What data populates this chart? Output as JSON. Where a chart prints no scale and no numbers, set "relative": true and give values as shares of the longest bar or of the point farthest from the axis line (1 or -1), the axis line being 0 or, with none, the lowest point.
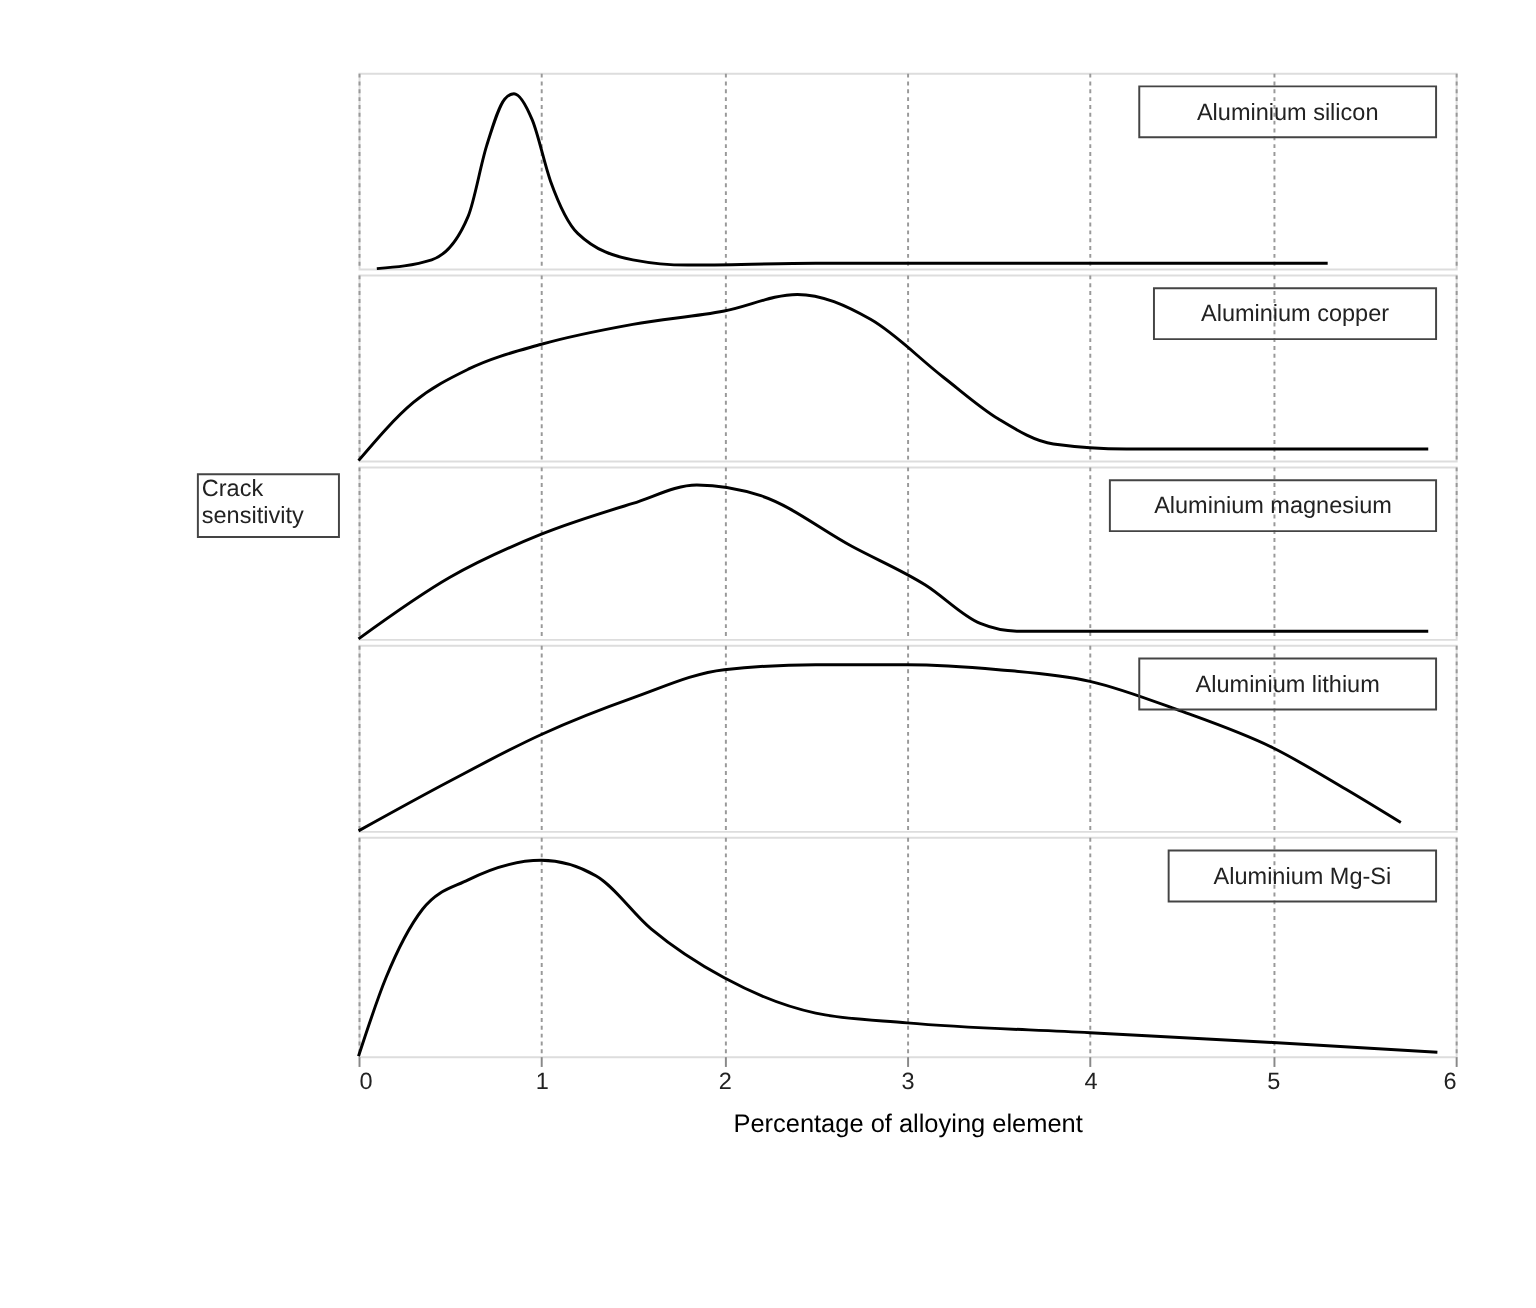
{
  "chart_data": [
    {
      "type": "line",
      "relative": true,
      "xlim": [
        0,
        6
      ],
      "xticks": [
        0,
        1,
        2,
        3,
        4,
        5,
        6
      ],
      "grid": "x",
      "tick_labels": false,
      "series": [
        {
          "name": "Aluminium silicon",
          "color": "#000000",
          "x": [
            0.1,
            0.4,
            0.6,
            0.7,
            0.8,
            0.85,
            0.95,
            1.05,
            1.2,
            1.5,
            1.8,
            2.5,
            3.5,
            5.3
          ],
          "values": [
            0,
            0.05,
            0.3,
            0.7,
            0.97,
            1,
            0.85,
            0.5,
            0.2,
            0.05,
            0.02,
            0.03,
            0.03,
            0.03
          ]
        }
      ]
    },
    {
      "type": "line",
      "relative": true,
      "xlim": [
        0,
        6
      ],
      "xticks": [
        0,
        1,
        2,
        3,
        4,
        5,
        6
      ],
      "grid": "x",
      "tick_labels": false,
      "series": [
        {
          "name": "Aluminium copper",
          "color": "#000000",
          "x": [
            0,
            0.3,
            0.6,
            1,
            1.5,
            2,
            2.4,
            2.8,
            3.2,
            3.5,
            3.8,
            4.2,
            5.85
          ],
          "values": [
            0,
            0.35,
            0.55,
            0.7,
            0.82,
            0.9,
            1,
            0.85,
            0.5,
            0.25,
            0.1,
            0.07,
            0.07
          ]
        }
      ]
    },
    {
      "type": "line",
      "relative": true,
      "xlim": [
        0,
        6
      ],
      "xticks": [
        0,
        1,
        2,
        3,
        4,
        5,
        6
      ],
      "grid": "x",
      "tick_labels": false,
      "ylabel": "Crack sensitivity",
      "series": [
        {
          "name": "Aluminium magnesium",
          "color": "#000000",
          "x": [
            0,
            0.5,
            1,
            1.5,
            1.85,
            2.2,
            2.7,
            3.1,
            3.4,
            3.6,
            5.85
          ],
          "values": [
            0,
            0.4,
            0.68,
            0.88,
            1,
            0.93,
            0.6,
            0.35,
            0.1,
            0.05,
            0.05
          ]
        }
      ]
    },
    {
      "type": "line",
      "relative": true,
      "xlim": [
        0,
        6
      ],
      "xticks": [
        0,
        1,
        2,
        3,
        4,
        5,
        6
      ],
      "grid": "x",
      "tick_labels": false,
      "series": [
        {
          "name": "Aluminium lithium",
          "color": "#000000",
          "x": [
            0,
            0.5,
            1,
            1.5,
            2,
            2.5,
            3,
            3.5,
            4,
            4.5,
            5,
            5.4,
            5.7
          ],
          "values": [
            0,
            0.3,
            0.58,
            0.8,
            0.97,
            1,
            1,
            0.97,
            0.9,
            0.72,
            0.5,
            0.25,
            0.05
          ]
        }
      ]
    },
    {
      "type": "line",
      "relative": true,
      "xlim": [
        0,
        6
      ],
      "xticks": [
        0,
        1,
        2,
        3,
        4,
        5,
        6
      ],
      "grid": "x",
      "tick_labels": "x",
      "xlabel": "Percentage of alloying element",
      "series": [
        {
          "name": "Aluminium Mg-Si",
          "color": "#000000",
          "x": [
            0,
            0.15,
            0.35,
            0.6,
            1,
            1.3,
            1.6,
            2,
            2.5,
            3,
            4,
            5,
            5.9
          ],
          "values": [
            0,
            0.4,
            0.75,
            0.9,
            1,
            0.92,
            0.65,
            0.4,
            0.22,
            0.17,
            0.12,
            0.07,
            0.02
          ]
        }
      ]
    }
  ]
}
